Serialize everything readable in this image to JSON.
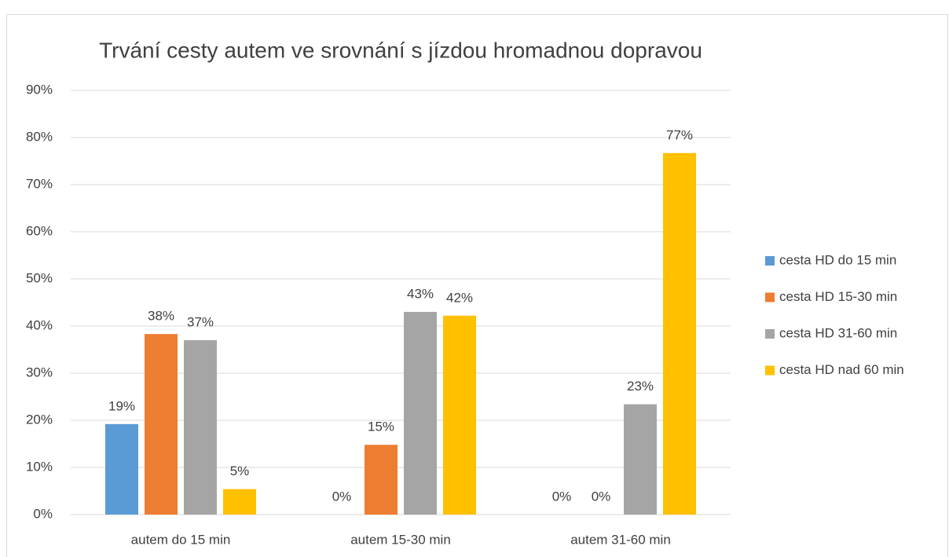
{
  "chart_data": {
    "type": "bar",
    "title": "Trvání cesty autem ve srovnání s jízdou hromadnou dopravou",
    "categories": [
      "autem do 15 min",
      "autem 15-30 min",
      "autem 31-60 min"
    ],
    "series": [
      {
        "name": "cesta HD do 15 min",
        "color": "#5b9bd5",
        "values": [
          19.2,
          0,
          0
        ],
        "value_labels": [
          "19%",
          "0%",
          "0%"
        ]
      },
      {
        "name": "cesta HD 15-30 min",
        "color": "#ed7d31",
        "values": [
          38.3,
          14.8,
          0
        ],
        "value_labels": [
          "38%",
          "15%",
          "0%"
        ]
      },
      {
        "name": "cesta HD 31-60 min",
        "color": "#a5a5a5",
        "values": [
          37,
          43,
          23.4
        ],
        "value_labels": [
          "37%",
          "43%",
          "23%"
        ]
      },
      {
        "name": "cesta HD nad 60 min",
        "color": "#ffc000",
        "values": [
          5.4,
          42.2,
          76.7
        ],
        "value_labels": [
          "5%",
          "42%",
          "77%"
        ]
      }
    ],
    "ylim": [
      0,
      90
    ],
    "yticks": [
      {
        "value": 0,
        "label": "0%"
      },
      {
        "value": 10,
        "label": "10%"
      },
      {
        "value": 20,
        "label": "20%"
      },
      {
        "value": 30,
        "label": "30%"
      },
      {
        "value": 40,
        "label": "40%"
      },
      {
        "value": 50,
        "label": "50%"
      },
      {
        "value": 60,
        "label": "60%"
      },
      {
        "value": 70,
        "label": "70%"
      },
      {
        "value": 80,
        "label": "80%"
      },
      {
        "value": 90,
        "label": "90%"
      }
    ],
    "grid": true,
    "legend": "right"
  }
}
